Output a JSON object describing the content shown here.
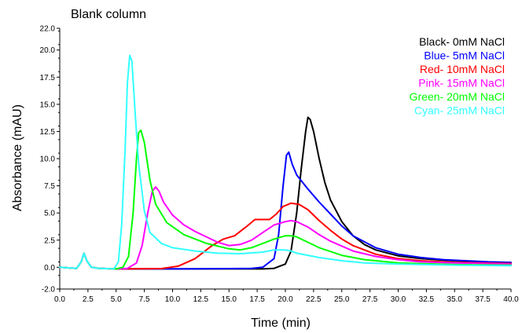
{
  "chart_data": {
    "type": "line",
    "title": "Blank column",
    "xlabel": "Time (min)",
    "ylabel": "Absorbance (mAU)",
    "xlim": [
      0,
      40
    ],
    "ylim": [
      -2,
      22
    ],
    "x_ticks": [
      "0.0",
      "2.5",
      "5.0",
      "7.5",
      "10.0",
      "12.5",
      "15.0",
      "17.5",
      "20.0",
      "22.5",
      "25.0",
      "27.5",
      "30.0",
      "32.5",
      "35.0",
      "37.5",
      "40.0"
    ],
    "y_ticks": [
      "-2.0",
      "0.0",
      "2.5",
      "5.0",
      "7.5",
      "10.0",
      "12.5",
      "15.0",
      "17.5",
      "20.0",
      "22.0"
    ],
    "grid": false,
    "legend_position": "top-right",
    "series": [
      {
        "name": "Black- 0mM NaCl",
        "color": "#000000",
        "x": [
          0,
          1.5,
          1.9,
          2.15,
          2.4,
          2.8,
          3.5,
          5,
          10,
          15,
          18,
          19,
          20,
          20.5,
          21,
          21.4,
          21.8,
          22,
          22.2,
          22.5,
          23,
          23.5,
          24,
          25,
          26,
          27,
          28,
          30,
          32,
          34,
          36,
          38,
          40
        ],
        "y": [
          0,
          -0.1,
          0.5,
          1.3,
          0.6,
          0,
          -0.1,
          -0.15,
          -0.15,
          -0.15,
          -0.15,
          -0.1,
          0.3,
          1.5,
          5,
          9,
          12.5,
          13.8,
          13.6,
          12.5,
          10,
          7.8,
          6.2,
          4.2,
          2.9,
          2.1,
          1.6,
          1.05,
          0.8,
          0.65,
          0.55,
          0.45,
          0.4
        ]
      },
      {
        "name": "Blue- 5mM NaCl",
        "color": "#0000ff",
        "x": [
          0,
          1.5,
          1.9,
          2.15,
          2.4,
          2.8,
          3.5,
          5,
          10,
          15,
          17,
          18,
          19,
          19.4,
          19.8,
          20.1,
          20.3,
          20.6,
          21,
          22,
          23,
          24,
          25,
          26,
          28,
          30,
          32,
          34,
          36,
          38,
          40
        ],
        "y": [
          0,
          -0.1,
          0.5,
          1.3,
          0.6,
          0,
          -0.1,
          -0.15,
          -0.15,
          -0.12,
          -0.1,
          0,
          0.8,
          3,
          7.5,
          10.3,
          10.6,
          9.5,
          8.5,
          7.2,
          6,
          4.9,
          3.8,
          2.9,
          1.8,
          1.2,
          0.9,
          0.7,
          0.6,
          0.5,
          0.45
        ]
      },
      {
        "name": "Red- 10mM NaCl",
        "color": "#ff0000",
        "x": [
          0,
          1.5,
          1.9,
          2.15,
          2.4,
          2.8,
          3.5,
          5,
          9,
          10.5,
          12,
          13.5,
          14.5,
          15.5,
          16.5,
          17.3,
          18,
          18.6,
          19.2,
          19.8,
          20.5,
          21.2,
          22,
          23,
          24,
          25,
          26,
          28,
          30,
          32,
          35,
          40
        ],
        "y": [
          0,
          -0.1,
          0.5,
          1.3,
          0.6,
          0,
          -0.1,
          -0.15,
          -0.12,
          0.1,
          0.8,
          2,
          2.6,
          2.9,
          3.7,
          4.4,
          4.4,
          4.4,
          4.9,
          5.6,
          5.9,
          5.8,
          5.3,
          4.3,
          3.4,
          2.6,
          2,
          1.2,
          0.8,
          0.6,
          0.45,
          0.35
        ]
      },
      {
        "name": "Pink- 15mM NaCl",
        "color": "#ff00ff",
        "x": [
          0,
          1.5,
          1.9,
          2.15,
          2.4,
          2.8,
          3.5,
          5,
          6,
          6.8,
          7.3,
          7.8,
          8.2,
          8.5,
          8.8,
          9.2,
          10,
          11,
          12,
          13,
          14,
          15,
          16,
          17,
          18,
          19,
          20,
          20.5,
          21,
          22,
          23,
          24,
          26,
          28,
          30,
          32,
          35,
          40
        ],
        "y": [
          0,
          -0.1,
          0.5,
          1.3,
          0.6,
          0,
          -0.1,
          -0.15,
          -0.1,
          0.4,
          2,
          5,
          7,
          7.4,
          7,
          6,
          4.8,
          3.9,
          3.3,
          2.8,
          2.3,
          2,
          2.1,
          2.5,
          3.2,
          3.9,
          4.2,
          4.3,
          4.2,
          3.7,
          3,
          2.4,
          1.5,
          1,
          0.7,
          0.5,
          0.4,
          0.3
        ]
      },
      {
        "name": "Green- 20mM NaCl",
        "color": "#00ff00",
        "x": [
          0,
          1.5,
          1.9,
          2.15,
          2.4,
          2.8,
          3.5,
          5,
          5.6,
          6.1,
          6.5,
          6.8,
          7,
          7.2,
          7.5,
          8,
          8.5,
          9.5,
          11,
          13,
          15,
          16,
          17,
          18,
          19,
          20,
          20.5,
          21,
          22,
          23,
          25,
          27,
          30,
          35,
          40
        ],
        "y": [
          0,
          -0.1,
          0.5,
          1.3,
          0.6,
          0,
          -0.1,
          -0.15,
          0,
          1,
          5,
          10,
          12.4,
          12.6,
          11.5,
          8,
          5.8,
          4.1,
          3,
          2.2,
          1.7,
          1.6,
          1.8,
          2.2,
          2.6,
          2.9,
          2.9,
          2.8,
          2.3,
          1.8,
          1.1,
          0.7,
          0.4,
          0.25,
          0.2
        ]
      },
      {
        "name": "Cyan- 25mM NaCl",
        "color": "#33ffff",
        "x": [
          0,
          1.5,
          1.9,
          2.15,
          2.4,
          2.8,
          3.5,
          4.8,
          5.2,
          5.5,
          5.8,
          6,
          6.2,
          6.4,
          6.7,
          7,
          7.5,
          8,
          9,
          10,
          12,
          14,
          16,
          18,
          19,
          20,
          20.5,
          21,
          22,
          23,
          25,
          27,
          30,
          35,
          40
        ],
        "y": [
          0,
          -0.1,
          0.5,
          1.3,
          0.6,
          0,
          -0.1,
          -0.15,
          0.5,
          4,
          11,
          17,
          19.5,
          19,
          14,
          9.5,
          5.2,
          3.2,
          2.2,
          1.8,
          1.5,
          1.3,
          1.25,
          1.4,
          1.6,
          1.6,
          1.5,
          1.3,
          1.1,
          0.9,
          0.6,
          0.4,
          0.3,
          0.2,
          0.15
        ]
      }
    ]
  }
}
